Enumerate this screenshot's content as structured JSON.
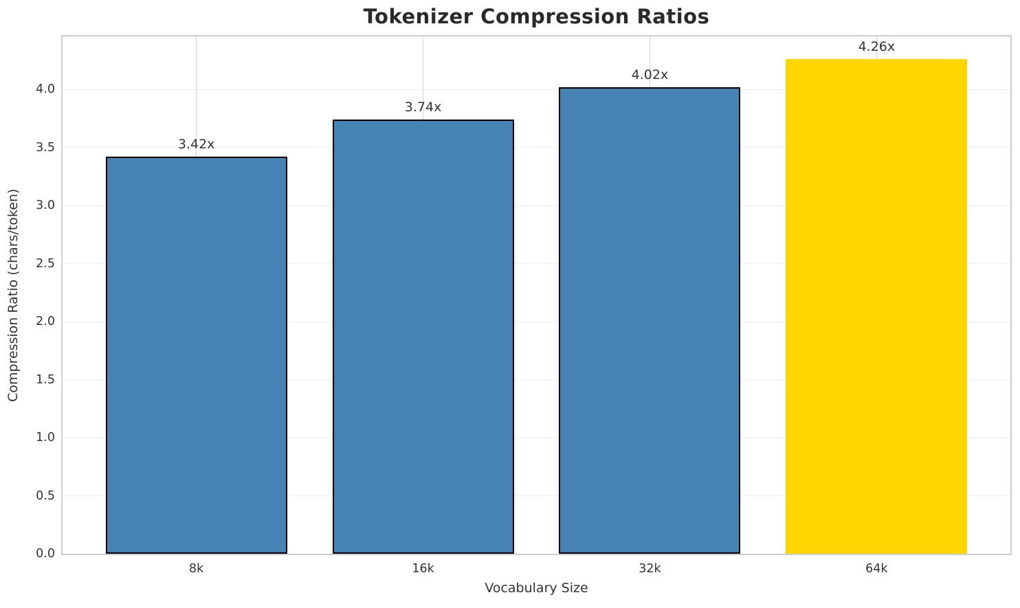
{
  "chart_data": {
    "type": "bar",
    "title": "Tokenizer Compression Ratios",
    "xlabel": "Vocabulary Size",
    "ylabel": "Compression Ratio (chars/token)",
    "categories": [
      "8k",
      "16k",
      "32k",
      "64k"
    ],
    "values": [
      3.42,
      3.74,
      4.02,
      4.26
    ],
    "bar_labels": [
      "3.42x",
      "3.74x",
      "4.02x",
      "4.26x"
    ],
    "bar_colors": [
      "#4682b4",
      "#4682b4",
      "#4682b4",
      "#ffd700"
    ],
    "bar_edge_colors": [
      "#000000",
      "#000000",
      "#000000",
      "none"
    ],
    "bar_width_units": 0.8,
    "xlim": [
      -0.59,
      3.59
    ],
    "ylim": [
      0,
      4.458
    ],
    "yticks": [
      0,
      0.5,
      1,
      1.5,
      2,
      2.5,
      3,
      3.5,
      4
    ],
    "ytick_label_format": "one-decimal",
    "grid": true,
    "legend_position": "none"
  },
  "colors": {
    "background": "#ffffff",
    "h_grid": "#eeeeee",
    "v_grid": "#d2d2d2",
    "spine": "#cccccc",
    "title_text": "#2a2a2a",
    "label_text": "#333333",
    "bar_edge": "#000000"
  }
}
